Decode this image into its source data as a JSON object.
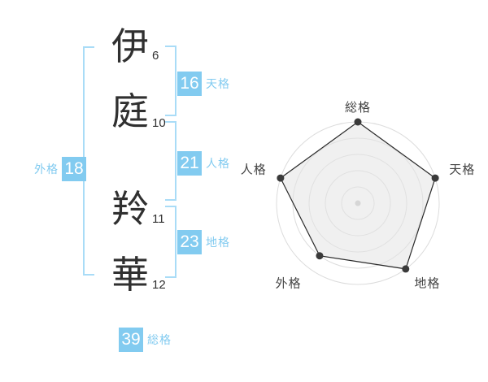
{
  "name": {
    "surname": [
      {
        "char": "伊",
        "strokes": "6"
      },
      {
        "char": "庭",
        "strokes": "10"
      }
    ],
    "given": [
      {
        "char": "羚",
        "strokes": "11"
      },
      {
        "char": "華",
        "strokes": "12"
      }
    ]
  },
  "scores": {
    "tenkaku": {
      "label": "天格",
      "value": "16"
    },
    "jinkaku": {
      "label": "人格",
      "value": "21"
    },
    "chikaku": {
      "label": "地格",
      "value": "23"
    },
    "gaikaku": {
      "label": "外格",
      "value": "18"
    },
    "soukaku": {
      "label": "総格",
      "value": "39"
    }
  },
  "colors": {
    "accent-blue": "#82cbf0",
    "bracket-blue": "#a9dcf7",
    "ink": "#303030",
    "chart-label": "#444444",
    "grid-gray": "#dcdcdc",
    "polygon-fill": "#e4e4e4",
    "polygon-stroke": "#2a2a2a",
    "point-color": "#3a3a3a",
    "center-dot": "#c6c6c6"
  },
  "chart_data": {
    "type": "radar",
    "categories": [
      "総格",
      "天格",
      "地格",
      "外格",
      "人格"
    ],
    "values": [
      5,
      5,
      5,
      4,
      5
    ],
    "max": 5,
    "rings": 5,
    "start_angle_deg": 90,
    "direction": "clockwise",
    "title": "",
    "legend": "none",
    "score_map": {
      "総格": 39,
      "天格": 16,
      "地格": 23,
      "外格": 18,
      "人格": 21
    }
  }
}
